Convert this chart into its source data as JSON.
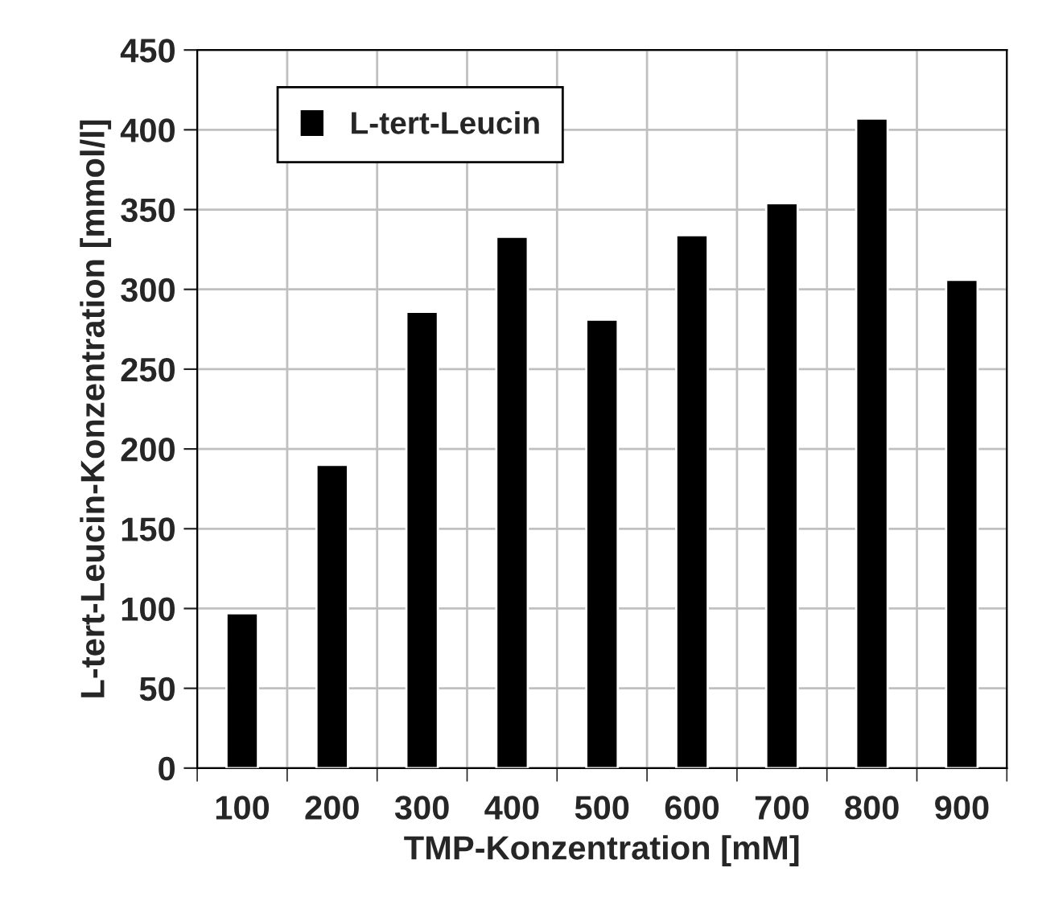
{
  "chart_data": {
    "type": "bar",
    "xlabel": "TMP-Konzentration [mM]",
    "ylabel": "L-tert-Leucin-Konzentration [mmol/l]",
    "categories": [
      "100",
      "200",
      "300",
      "400",
      "500",
      "600",
      "700",
      "800",
      "900"
    ],
    "series": [
      {
        "name": "L-tert-Leucin",
        "color": "#000000",
        "values": [
          97,
          190,
          286,
          333,
          281,
          334,
          354,
          407,
          306
        ]
      }
    ],
    "ylim": [
      0,
      450
    ],
    "yticks": [
      0,
      50,
      100,
      150,
      200,
      250,
      300,
      350,
      400,
      450
    ],
    "grid": true,
    "legend": "top left"
  }
}
